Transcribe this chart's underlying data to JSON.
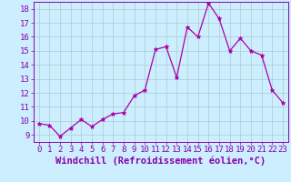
{
  "x": [
    0,
    1,
    2,
    3,
    4,
    5,
    6,
    7,
    8,
    9,
    10,
    11,
    12,
    13,
    14,
    15,
    16,
    17,
    18,
    19,
    20,
    21,
    22,
    23
  ],
  "y": [
    9.8,
    9.7,
    8.9,
    9.5,
    10.1,
    9.6,
    10.1,
    10.5,
    10.6,
    11.8,
    12.2,
    15.1,
    15.3,
    13.1,
    16.7,
    16.0,
    18.4,
    17.3,
    15.0,
    15.9,
    15.0,
    14.7,
    12.2,
    11.3
  ],
  "line_color": "#aa00aa",
  "marker": "*",
  "marker_color": "#aa00aa",
  "bg_color": "#cceeff",
  "grid_color": "#aacccc",
  "xlabel": "Windchill (Refroidissement éolien,°C)",
  "xlabel_color": "#8800aa",
  "xlim": [
    -0.5,
    23.5
  ],
  "ylim": [
    8.5,
    18.5
  ],
  "yticks": [
    9,
    10,
    11,
    12,
    13,
    14,
    15,
    16,
    17,
    18
  ],
  "xticks": [
    0,
    1,
    2,
    3,
    4,
    5,
    6,
    7,
    8,
    9,
    10,
    11,
    12,
    13,
    14,
    15,
    16,
    17,
    18,
    19,
    20,
    21,
    22,
    23
  ],
  "tick_color": "#8800aa",
  "tick_fontsize": 6.5,
  "xlabel_fontsize": 7.5,
  "spine_color": "#8800aa"
}
